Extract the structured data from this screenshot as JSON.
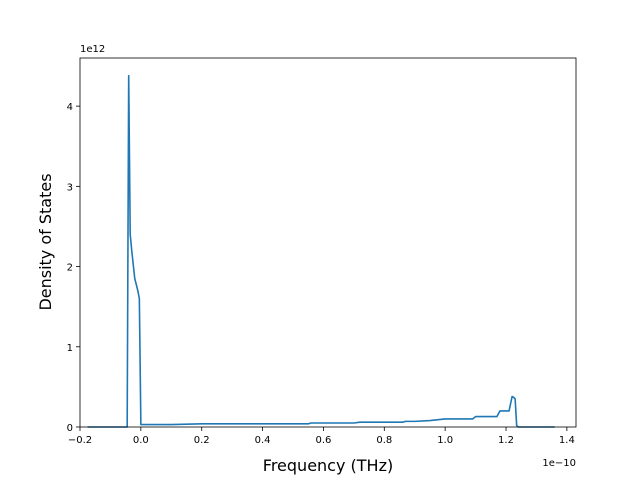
{
  "chart_data": {
    "type": "line",
    "title": "",
    "xlabel": "Frequency (THz)",
    "ylabel": "Density of States",
    "x_offset_text": "1e−10",
    "y_offset_text": "1e12",
    "xlim": [
      -0.2,
      1.43
    ],
    "ylim": [
      0,
      4.6
    ],
    "xticks": [
      -0.2,
      0.0,
      0.2,
      0.4,
      0.6,
      0.8,
      1.0,
      1.2,
      1.4
    ],
    "xtick_labels": [
      "−0.2",
      "0.0",
      "0.2",
      "0.4",
      "0.6",
      "0.8",
      "1.0",
      "1.2",
      "1.4"
    ],
    "yticks": [
      0,
      1,
      2,
      3,
      4
    ],
    "ytick_labels": [
      "0",
      "1",
      "2",
      "3",
      "4"
    ],
    "grid": false,
    "legend": false,
    "series": [
      {
        "color": "#1f77b4",
        "x": [
          -0.175,
          -0.045,
          -0.04,
          -0.035,
          -0.03,
          -0.02,
          -0.01,
          -0.005,
          0.0,
          0.005,
          0.05,
          0.1,
          0.2,
          0.3,
          0.4,
          0.5,
          0.55,
          0.56,
          0.6,
          0.7,
          0.72,
          0.8,
          0.86,
          0.87,
          0.9,
          0.95,
          1.0,
          1.05,
          1.09,
          1.1,
          1.15,
          1.17,
          1.18,
          1.2,
          1.21,
          1.22,
          1.225,
          1.23,
          1.235,
          1.24,
          1.3,
          1.36
        ],
        "y": [
          0.0,
          0.0,
          4.38,
          2.4,
          2.2,
          1.85,
          1.7,
          1.6,
          0.03,
          0.03,
          0.03,
          0.03,
          0.04,
          0.04,
          0.04,
          0.04,
          0.04,
          0.05,
          0.05,
          0.05,
          0.06,
          0.06,
          0.06,
          0.07,
          0.07,
          0.08,
          0.1,
          0.1,
          0.1,
          0.13,
          0.13,
          0.13,
          0.2,
          0.2,
          0.2,
          0.38,
          0.37,
          0.35,
          0.02,
          0.0,
          0.0,
          0.0
        ]
      }
    ]
  }
}
